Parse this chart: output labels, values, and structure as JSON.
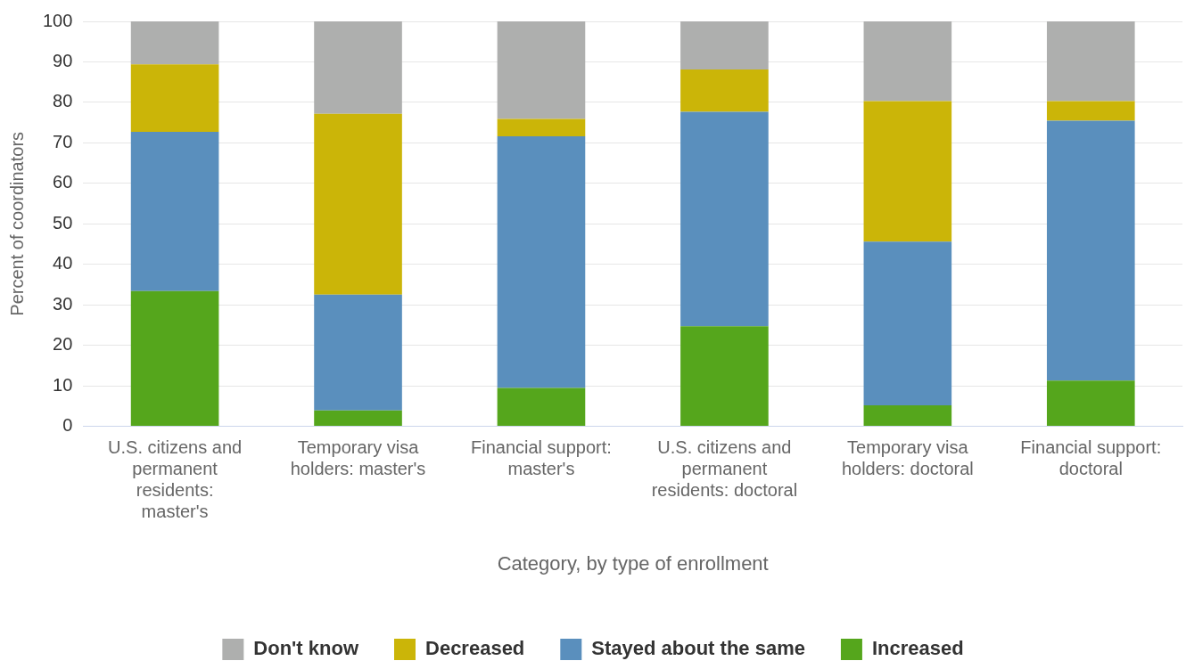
{
  "chart_data": {
    "type": "bar",
    "stacked": true,
    "xlabel": "Category, by type of enrollment",
    "ylabel": "Percent of coordinators",
    "categories": [
      "U.S. citizens and permanent residents: master's",
      "Temporary visa holders: master's",
      "Financial support: master's",
      "U.S. citizens and permanent residents: doctoral",
      "Temporary visa holders: doctoral",
      "Financial support: doctoral"
    ],
    "series": [
      {
        "name": "Increased",
        "color": "#55a61c",
        "values": [
          33.4,
          3.9,
          9.5,
          24.7,
          5.2,
          11.3
        ]
      },
      {
        "name": "Stayed about the same",
        "color": "#5a8fbd",
        "values": [
          39.3,
          28.6,
          62.1,
          53.0,
          40.4,
          64.2
        ]
      },
      {
        "name": "Decreased",
        "color": "#cbb508",
        "values": [
          16.7,
          44.7,
          4.3,
          10.4,
          34.7,
          4.8
        ]
      },
      {
        "name": "Don't know",
        "color": "#aeafae",
        "values": [
          10.6,
          22.8,
          24.1,
          11.9,
          19.7,
          19.7
        ]
      }
    ],
    "ylim": [
      0,
      100
    ],
    "yticks": [
      0,
      10,
      20,
      30,
      40,
      50,
      60,
      70,
      80,
      90,
      100
    ],
    "grid": "y",
    "legend": "bottom"
  }
}
